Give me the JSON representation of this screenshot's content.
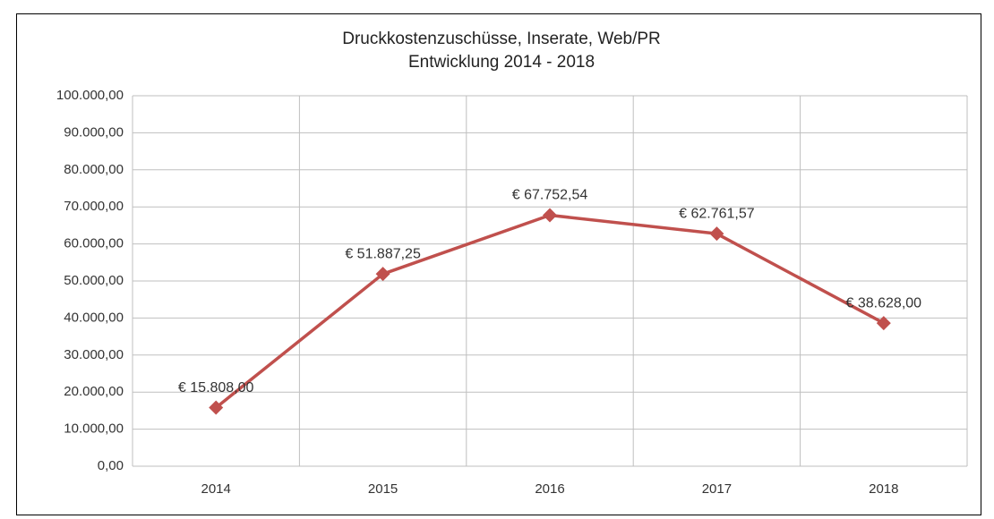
{
  "chart_data": {
    "type": "line",
    "title": "Druckkostenzuschüsse, Inserate, Web/PR",
    "subtitle": "Entwicklung 2014 - 2018",
    "categories": [
      "2014",
      "2015",
      "2016",
      "2017",
      "2018"
    ],
    "values": [
      15808,
      51887.25,
      67752.54,
      62761.57,
      38628
    ],
    "value_labels": [
      "€ 15.808,00",
      "€ 51.887,25",
      "€ 67.752,54",
      "€ 62.761,57",
      "€ 38.628,00"
    ],
    "color": "#c0504d",
    "ylim": [
      0,
      100000
    ],
    "yticks": [
      {
        "value": 0,
        "label": "0,00"
      },
      {
        "value": 10000,
        "label": "10.000,00"
      },
      {
        "value": 20000,
        "label": "20.000,00"
      },
      {
        "value": 30000,
        "label": "30.000,00"
      },
      {
        "value": 40000,
        "label": "40.000,00"
      },
      {
        "value": 50000,
        "label": "50.000,00"
      },
      {
        "value": 60000,
        "label": "60.000,00"
      },
      {
        "value": 70000,
        "label": "70.000,00"
      },
      {
        "value": 80000,
        "label": "80.000,00"
      },
      {
        "value": 90000,
        "label": "90.000,00"
      },
      {
        "value": 100000,
        "label": "100.000,00"
      }
    ],
    "grid": true
  }
}
